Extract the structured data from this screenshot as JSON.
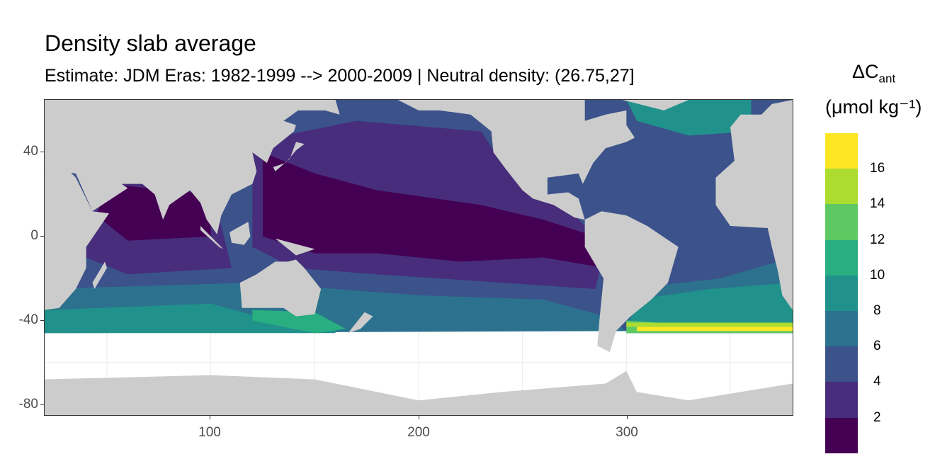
{
  "chart_data": {
    "type": "heatmap",
    "title": "Density slab average",
    "subtitle": "Estimate: JDM Eras: 1982-1999 --> 2000-2009 | Neutral density: (26.75,27]",
    "xlabel": "",
    "ylabel": "",
    "xlim": [
      20,
      380
    ],
    "ylim": [
      -85,
      65
    ],
    "x_ticks": [
      "100",
      "200",
      "300"
    ],
    "x_tick_values": [
      100,
      200,
      300
    ],
    "y_ticks": [
      "40",
      "0",
      "-40",
      "-80"
    ],
    "y_tick_values": [
      40,
      0,
      -40,
      -80
    ],
    "legend": {
      "title_main": "ΔC",
      "title_sub": "ant",
      "unit": "(μmol kg⁻¹)",
      "breaks": [
        "16",
        "14",
        "12",
        "10",
        "8",
        "6",
        "4",
        "2"
      ],
      "colors": [
        "#fde725",
        "#addc30",
        "#5ec962",
        "#28ae80",
        "#21918c",
        "#2c728e",
        "#3b528b",
        "#472d7b",
        "#440154"
      ],
      "placement": "right"
    },
    "land_color": "#cccccc"
  }
}
